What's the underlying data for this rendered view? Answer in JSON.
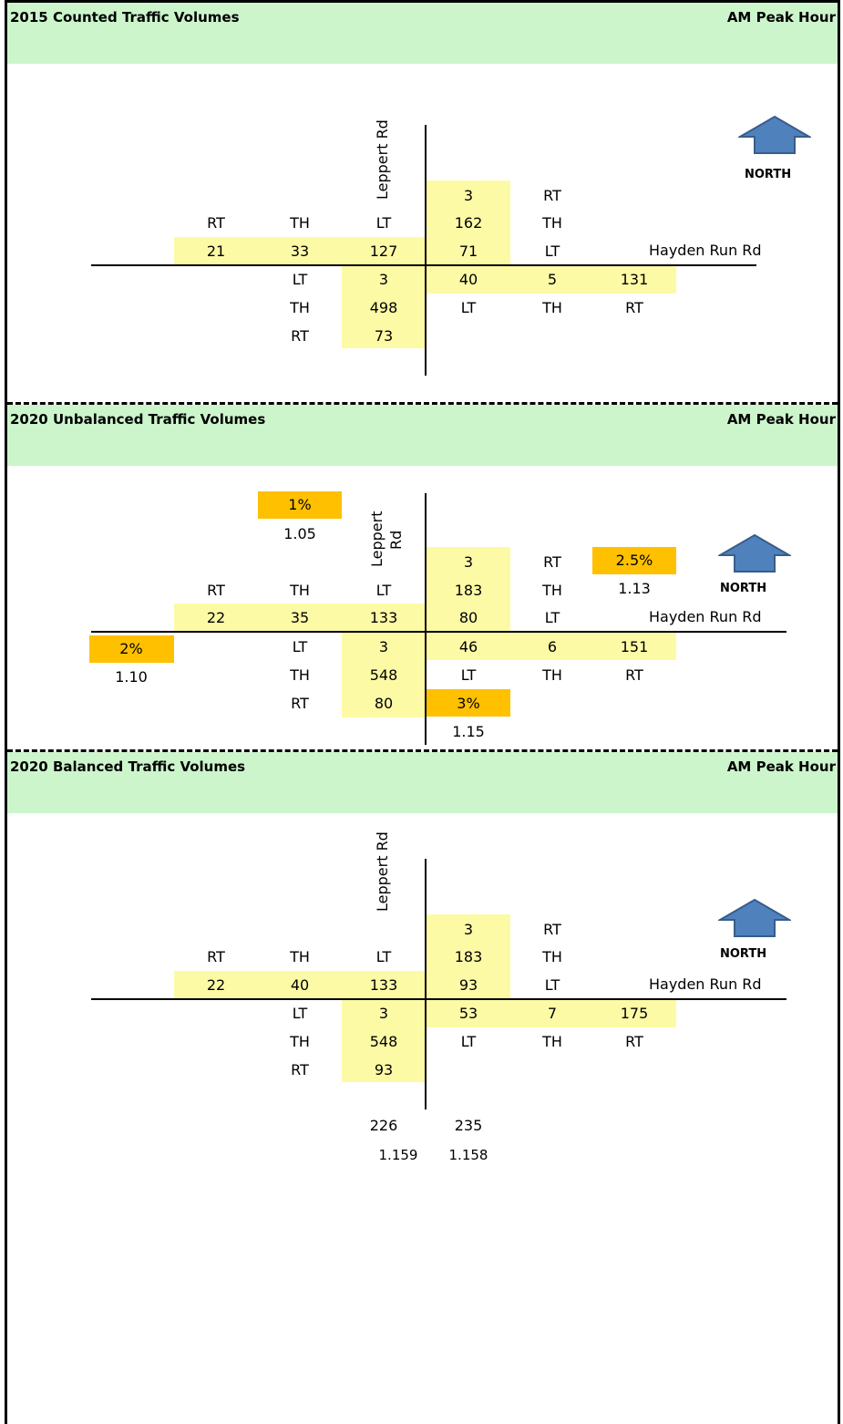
{
  "common": {
    "peak": "AM Peak Hour",
    "north": "NORTH",
    "ns_road": "Leppert Rd",
    "ns_road_line1": "Leppert",
    "ns_road_line2": "Rd",
    "ew_road": "Hayden Run Rd",
    "mv": {
      "rt": "RT",
      "th": "TH",
      "lt": "LT"
    },
    "colors": {
      "header": "#ccf5cc",
      "cell": "#fdfaa6",
      "growth": "#ffc000"
    }
  },
  "sections": [
    {
      "title": "2015 Counted Traffic Volumes",
      "southbound": {
        "rt": "21",
        "th": "33",
        "lt": "127"
      },
      "westbound": {
        "rt": "3",
        "th": "162",
        "lt": "71"
      },
      "northbound": {
        "lt": "3",
        "th": "498",
        "rt": "73"
      },
      "eastbound": {
        "lt": "40",
        "th": "5",
        "rt": "131"
      }
    },
    {
      "title": "2020 Unbalanced Traffic Volumes",
      "southbound": {
        "rt": "22",
        "th": "35",
        "lt": "133"
      },
      "westbound": {
        "rt": "3",
        "th": "183",
        "lt": "80"
      },
      "northbound": {
        "lt": "3",
        "th": "548",
        "rt": "80"
      },
      "eastbound": {
        "lt": "46",
        "th": "6",
        "rt": "151"
      },
      "growth": {
        "north": {
          "rate": "1%",
          "factor": "1.05"
        },
        "east": {
          "rate": "2.5%",
          "factor": "1.13"
        },
        "west": {
          "rate": "2%",
          "factor": "1.10"
        },
        "south": {
          "rate": "3%",
          "factor": "1.15"
        }
      }
    },
    {
      "title": "2020 Balanced Traffic Volumes",
      "southbound": {
        "rt": "22",
        "th": "40",
        "lt": "133"
      },
      "westbound": {
        "rt": "3",
        "th": "183",
        "lt": "93"
      },
      "northbound": {
        "lt": "3",
        "th": "548",
        "rt": "93"
      },
      "eastbound": {
        "lt": "53",
        "th": "7",
        "rt": "175"
      },
      "balance": {
        "left_total": "226",
        "right_total": "235",
        "left_factor": "1.159",
        "right_factor": "1.158"
      }
    }
  ]
}
